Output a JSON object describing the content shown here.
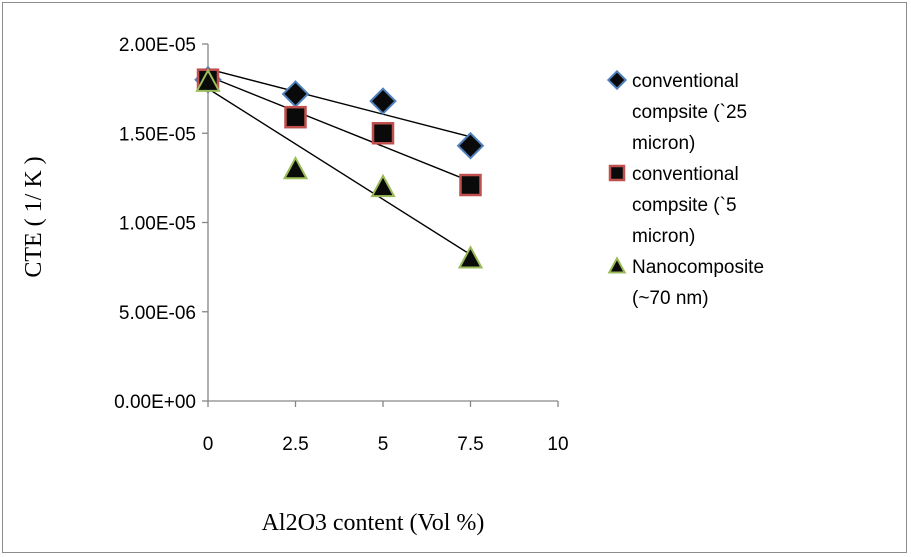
{
  "chart_data": {
    "type": "scatter",
    "xlabel": "Al2O3 content (Vol %)",
    "ylabel": "CTE ( 1/ K )",
    "xlim": [
      0,
      10
    ],
    "ylim": [
      0,
      2e-05
    ],
    "x_ticks": [
      0,
      2.5,
      5,
      7.5,
      10
    ],
    "x_tick_labels": [
      "0",
      "2.5",
      "5",
      "7.5",
      "10"
    ],
    "y_ticks": [
      0,
      5e-06,
      1e-05,
      1.5e-05,
      2e-05
    ],
    "y_tick_labels": [
      "0.00E+00",
      "5.00E-06",
      "1.00E-05",
      "1.50E-05",
      "2.00E-05"
    ],
    "grid": false,
    "legend_position": "right",
    "series": [
      {
        "name": "conventional compsite (`25 micron)",
        "legend_lines": [
          "conventional",
          "compsite (`25",
          "micron)"
        ],
        "marker": "diamond",
        "fill": "#0a0a0a",
        "edge": "#4f81bd",
        "x": [
          0,
          2.5,
          5,
          7.5
        ],
        "y": [
          1.8e-05,
          1.72e-05,
          1.68e-05,
          1.43e-05
        ],
        "trend": {
          "x0": 0,
          "y0": 1.86e-05,
          "x1": 7.5,
          "y1": 1.48e-05
        }
      },
      {
        "name": "conventional compsite (`5 micron)",
        "legend_lines": [
          "conventional",
          "compsite (`5",
          "micron)"
        ],
        "marker": "square",
        "fill": "#0a0a0a",
        "edge": "#c0504d",
        "x": [
          0,
          2.5,
          5,
          7.5
        ],
        "y": [
          1.8e-05,
          1.59e-05,
          1.5e-05,
          1.21e-05
        ],
        "trend": {
          "x0": 0,
          "y0": 1.82e-05,
          "x1": 7.5,
          "y1": 1.23e-05
        }
      },
      {
        "name": "Nanocomposite (~70 nm)",
        "legend_lines": [
          "Nanocomposite",
          "(~70 nm)"
        ],
        "marker": "triangle",
        "fill": "#0a0a0a",
        "edge": "#9bbb59",
        "x": [
          0,
          2.5,
          5,
          7.5
        ],
        "y": [
          1.79e-05,
          1.3e-05,
          1.2e-05,
          8e-06
        ],
        "trend": {
          "x0": 0,
          "y0": 1.75e-05,
          "x1": 7.5,
          "y1": 8.2e-06
        }
      }
    ]
  }
}
